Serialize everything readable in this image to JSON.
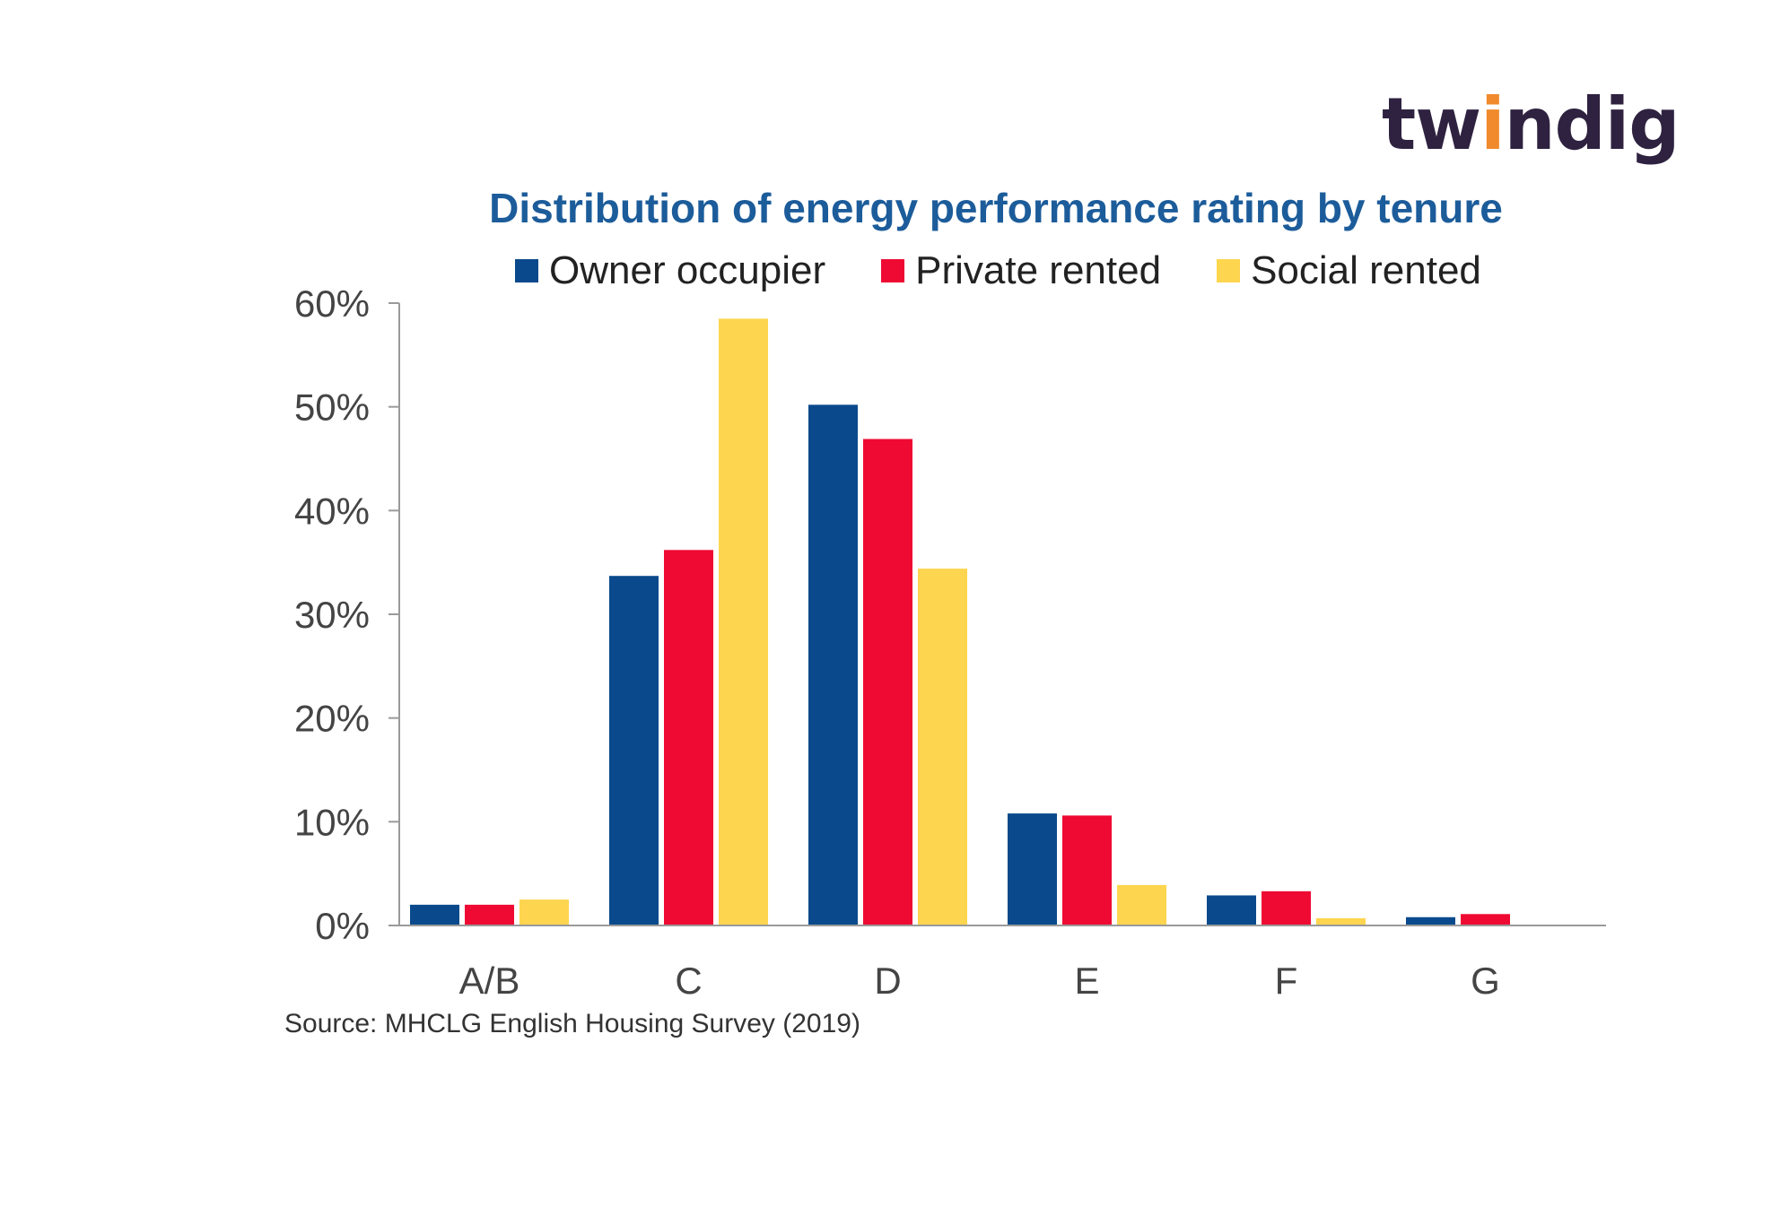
{
  "logo": {
    "text_before": "tw",
    "text_i": "i",
    "text_after": "ndig",
    "accent_color": "#f08a2c",
    "color": "#2e2240"
  },
  "chart_data": {
    "type": "bar",
    "title": "Distribution of energy performance rating by tenure",
    "source": "Source: MHCLG English Housing Survey (2019)",
    "categories": [
      "A/B",
      "C",
      "D",
      "E",
      "F",
      "G"
    ],
    "series": [
      {
        "name": "Owner occupier",
        "color": "#0a4a8c",
        "values": [
          2,
          33.7,
          50.2,
          10.8,
          2.9,
          0.8
        ]
      },
      {
        "name": "Private rented",
        "color": "#ee0a33",
        "values": [
          2,
          36.2,
          46.9,
          10.6,
          3.3,
          1.1
        ]
      },
      {
        "name": "Social rented",
        "color": "#fdd54f",
        "values": [
          2.5,
          58.5,
          34.4,
          3.9,
          0.7,
          0
        ]
      }
    ],
    "ylim": [
      0,
      60
    ],
    "yticks": [
      "0%",
      "10%",
      "20%",
      "30%",
      "40%",
      "50%",
      "60%"
    ],
    "ytick_values": [
      0,
      10,
      20,
      30,
      40,
      50,
      60
    ],
    "grid": false,
    "legend_position": "top"
  }
}
